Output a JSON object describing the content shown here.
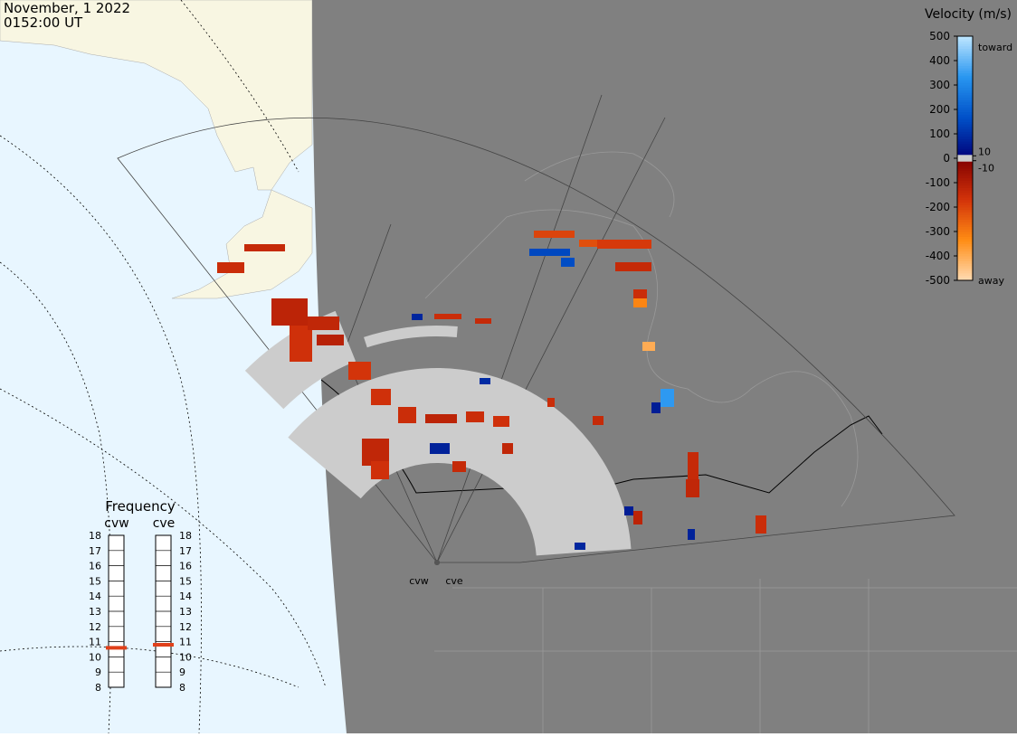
{
  "header": {
    "date": "November, 1 2022",
    "time": "0152:00 UT"
  },
  "colorbar": {
    "title": "Velocity (m/s)",
    "ticks": [
      500,
      400,
      300,
      200,
      100,
      0,
      -100,
      -200,
      -300,
      -400,
      -500
    ],
    "range": [
      -500,
      500
    ],
    "inner_ticks": [
      10,
      -10
    ],
    "toward": "toward",
    "away": "away"
  },
  "frequency": {
    "title": "Frequency",
    "ticks": [
      8,
      9,
      10,
      11,
      12,
      13,
      14,
      15,
      16,
      17,
      18
    ],
    "range": [
      8,
      18
    ],
    "radars": [
      {
        "name": "cvw",
        "value": 10.6,
        "color": "#e0401a"
      },
      {
        "name": "cve",
        "value": 10.8,
        "color": "#e0401a"
      }
    ]
  },
  "map": {
    "radars": [
      "cvw",
      "cve"
    ],
    "cells": [
      -150,
      -140,
      -120,
      -160,
      -130,
      -110,
      80,
      90,
      -150,
      -140,
      -170,
      -130,
      -160,
      -150,
      -120,
      70,
      -140,
      -150,
      -160,
      -130,
      -200,
      -220,
      150,
      160,
      -180,
      -140,
      -150,
      -320,
      340,
      60,
      70,
      -140,
      -130,
      -120,
      -150,
      -400,
      60,
      80,
      -150,
      -140,
      -160
    ]
  }
}
